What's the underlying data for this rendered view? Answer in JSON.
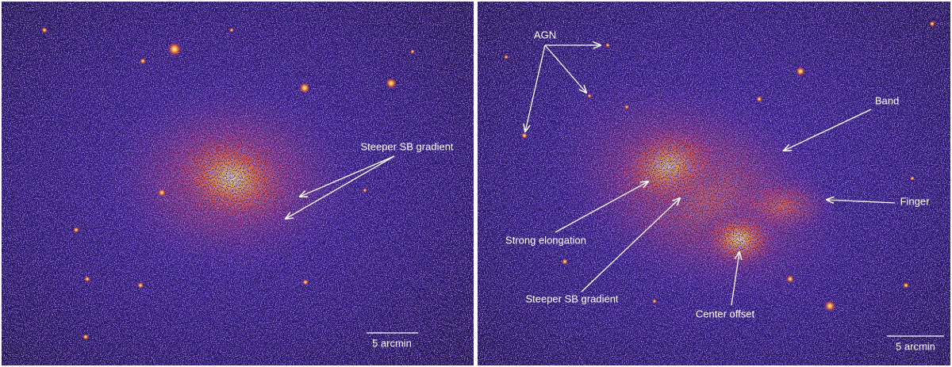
{
  "panels": [
    {
      "annotations": [
        "Steeper SB gradient"
      ],
      "scale_bar": "5 arcmin"
    },
    {
      "annotations": [
        "AGN",
        "Band",
        "Finger",
        "Strong elongation",
        "Steeper SB gradient",
        "Center offset"
      ],
      "scale_bar": "5 arcmin"
    }
  ]
}
